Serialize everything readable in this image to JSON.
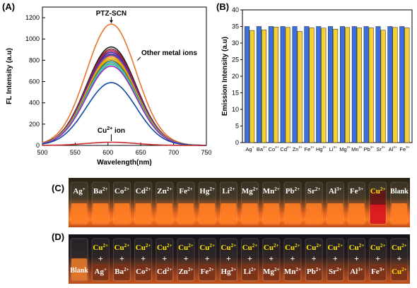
{
  "panels": {
    "a_letter": "(A)",
    "b_letter": "(B)",
    "c_letter": "(C)",
    "d_letter": "(D)"
  },
  "chart_data": [
    {
      "type": "line",
      "panel": "A",
      "xlabel": "Wavelength(nm)",
      "ylabel": "FL Intensity (a.u)",
      "xlim": [
        500,
        750
      ],
      "ylim": [
        0,
        1300
      ],
      "xticks": [
        "500",
        "550",
        "600",
        "650",
        "700",
        "750"
      ],
      "yticks": [
        "0",
        "200",
        "400",
        "600",
        "800",
        "1000",
        "1200"
      ],
      "peak_x": 605,
      "sigma": 38,
      "annotations": {
        "top": "PTZ-SCN",
        "middle": "Other metal ions",
        "bottom_prefix": "Cu",
        "bottom_sup": "2+",
        "bottom_suffix": " ion"
      },
      "series": [
        {
          "peak": 1140,
          "color": "#e8732b"
        },
        {
          "peak": 925,
          "color": "#1b1b1b"
        },
        {
          "peak": 905,
          "color": "#7a2a2a"
        },
        {
          "peak": 890,
          "color": "#c2185b"
        },
        {
          "peak": 875,
          "color": "#2e3192"
        },
        {
          "peak": 860,
          "color": "#8e24aa"
        },
        {
          "peak": 850,
          "color": "#1565c0"
        },
        {
          "peak": 840,
          "color": "#ef5350"
        },
        {
          "peak": 825,
          "color": "#d4c000"
        },
        {
          "peak": 810,
          "color": "#ff9800"
        },
        {
          "peak": 795,
          "color": "#2e7d32"
        },
        {
          "peak": 780,
          "color": "#42a5f5"
        },
        {
          "peak": 770,
          "color": "#8bc34a"
        },
        {
          "peak": 760,
          "color": "#26c6da"
        },
        {
          "peak": 745,
          "color": "#9c27b0"
        },
        {
          "peak": 590,
          "color": "#0d47a1"
        },
        {
          "peak": 30,
          "color": "#c62828"
        }
      ]
    },
    {
      "type": "bar",
      "panel": "B",
      "ylabel": "Emission Intensity (a.u)",
      "ylim": [
        0,
        40
      ],
      "yticks": [
        "0",
        "5",
        "10",
        "15",
        "20",
        "25",
        "30",
        "35",
        "40"
      ],
      "categories": [
        {
          "base": "Ag",
          "sup": "+"
        },
        {
          "base": "Ba",
          "sup": "2+"
        },
        {
          "base": "Co",
          "sup": "2+"
        },
        {
          "base": "Cd",
          "sup": "2+"
        },
        {
          "base": "Zn",
          "sup": "2+"
        },
        {
          "base": "Fe",
          "sup": "2+"
        },
        {
          "base": "Hg",
          "sup": "2+"
        },
        {
          "base": "Li",
          "sup": "2+"
        },
        {
          "base": "Mg",
          "sup": "2+"
        },
        {
          "base": "Mn",
          "sup": "2+"
        },
        {
          "base": "Pb",
          "sup": "2+"
        },
        {
          "base": "Sr",
          "sup": "2+"
        },
        {
          "base": "Al",
          "sup": "3+"
        },
        {
          "base": "Fe",
          "sup": "3+"
        }
      ],
      "series": [
        {
          "values": [
            35.0,
            35.0,
            35.0,
            35.0,
            35.0,
            35.0,
            35.0,
            35.0,
            35.0,
            35.0,
            35.0,
            35.0,
            35.0,
            35.0
          ],
          "color": "#3b6fe0"
        },
        {
          "values": [
            33.8,
            34.0,
            34.8,
            34.7,
            33.5,
            34.6,
            34.5,
            34.2,
            34.7,
            34.6,
            34.6,
            33.9,
            34.7,
            34.6
          ],
          "color": "#f5d033"
        }
      ]
    }
  ],
  "photo_c": {
    "labels": [
      {
        "base": "Ag",
        "sup": "+"
      },
      {
        "base": "Ba",
        "sup": "2+"
      },
      {
        "base": "Co",
        "sup": "2+"
      },
      {
        "base": "Cd",
        "sup": "2+"
      },
      {
        "base": "Zn",
        "sup": "2+"
      },
      {
        "base": "Fe",
        "sup": "2+"
      },
      {
        "base": "Hg",
        "sup": "2+"
      },
      {
        "base": "Li",
        "sup": "2+"
      },
      {
        "base": "Mg",
        "sup": "2+"
      },
      {
        "base": "Mn",
        "sup": "2+"
      },
      {
        "base": "Pb",
        "sup": "2+"
      },
      {
        "base": "Sr",
        "sup": "2+"
      },
      {
        "base": "Al",
        "sup": "3+"
      },
      {
        "base": "Fe",
        "sup": "3+"
      },
      {
        "base": "Cu",
        "sup": "2+",
        "highlight": true
      },
      {
        "base": "Blank",
        "sup": ""
      }
    ]
  },
  "photo_d": {
    "prefix_base": "Cu",
    "prefix_sup": "2+",
    "plus": "+",
    "blank": "Blank",
    "labels": [
      {
        "base": "Ag",
        "sup": "+"
      },
      {
        "base": "Ba",
        "sup": "2+"
      },
      {
        "base": "Co",
        "sup": "2+"
      },
      {
        "base": "Cd",
        "sup": "2+"
      },
      {
        "base": "Zn",
        "sup": "2+"
      },
      {
        "base": "Fe",
        "sup": "2+"
      },
      {
        "base": "Hg",
        "sup": "2+"
      },
      {
        "base": "Li",
        "sup": "2+"
      },
      {
        "base": "Mg",
        "sup": "2+"
      },
      {
        "base": "Mn",
        "sup": "2+"
      },
      {
        "base": "Pb",
        "sup": "2+"
      },
      {
        "base": "Sr",
        "sup": "2+"
      },
      {
        "base": "Al",
        "sup": "3+"
      },
      {
        "base": "Fe",
        "sup": "3+"
      },
      {
        "base": "Cu",
        "sup": "2+",
        "highlight": true
      }
    ]
  }
}
